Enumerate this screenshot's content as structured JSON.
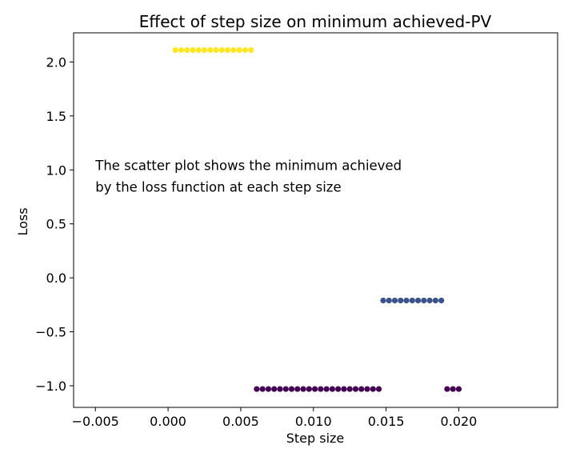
{
  "chart_data": {
    "type": "scatter",
    "title": "Effect of step size on minimum achieved-PV",
    "xlabel": "Step size",
    "ylabel": "Loss",
    "xlim": [
      -0.0065,
      0.0268
    ],
    "ylim": [
      -1.2,
      2.27
    ],
    "grid": false,
    "x_ticks": [
      -0.005,
      0.0,
      0.005,
      0.01,
      0.015,
      0.02
    ],
    "x_tick_labels": [
      "−0.005",
      "0.000",
      "0.005",
      "0.010",
      "0.015",
      "0.020"
    ],
    "y_ticks": [
      -1.0,
      -0.5,
      0.0,
      0.5,
      1.0,
      1.5,
      2.0
    ],
    "y_tick_labels": [
      "−1.0",
      "−0.5",
      "0.0",
      "0.5",
      "1.0",
      "1.5",
      "2.0"
    ],
    "annotation": {
      "lines": [
        "The scatter plot shows the minimum achieved",
        "by the loss function at each step size"
      ],
      "x": -0.005,
      "y": 1.0
    },
    "series": [
      {
        "color": "#fde725",
        "x": [
          0.0005,
          0.0009,
          0.0013,
          0.0017,
          0.0021,
          0.0025,
          0.0029,
          0.0033,
          0.0037,
          0.0041,
          0.0045,
          0.0049,
          0.0053,
          0.0057
        ],
        "y": [
          2.11,
          2.11,
          2.11,
          2.11,
          2.11,
          2.11,
          2.11,
          2.11,
          2.11,
          2.11,
          2.11,
          2.11,
          2.11,
          2.11
        ]
      },
      {
        "color": "#3b528b",
        "x": [
          0.0148,
          0.0152,
          0.0156,
          0.016,
          0.0164,
          0.0168,
          0.0172,
          0.0176,
          0.018,
          0.0184,
          0.0188
        ],
        "y": [
          -0.21,
          -0.21,
          -0.21,
          -0.21,
          -0.21,
          -0.21,
          -0.21,
          -0.21,
          -0.21,
          -0.21,
          -0.21
        ]
      },
      {
        "color": "#440154",
        "x": [
          0.0061,
          0.0065,
          0.0069,
          0.0073,
          0.0077,
          0.0081,
          0.0085,
          0.0089,
          0.0093,
          0.0097,
          0.0101,
          0.0105,
          0.0109,
          0.0113,
          0.0117,
          0.0121,
          0.0125,
          0.0129,
          0.0133,
          0.0137,
          0.0141,
          0.0145,
          0.0192,
          0.0196,
          0.02
        ],
        "y": [
          -1.03,
          -1.03,
          -1.03,
          -1.03,
          -1.03,
          -1.03,
          -1.03,
          -1.03,
          -1.03,
          -1.03,
          -1.03,
          -1.03,
          -1.03,
          -1.03,
          -1.03,
          -1.03,
          -1.03,
          -1.03,
          -1.03,
          -1.03,
          -1.03,
          -1.03,
          -1.03,
          -1.03,
          -1.03
        ]
      }
    ]
  }
}
